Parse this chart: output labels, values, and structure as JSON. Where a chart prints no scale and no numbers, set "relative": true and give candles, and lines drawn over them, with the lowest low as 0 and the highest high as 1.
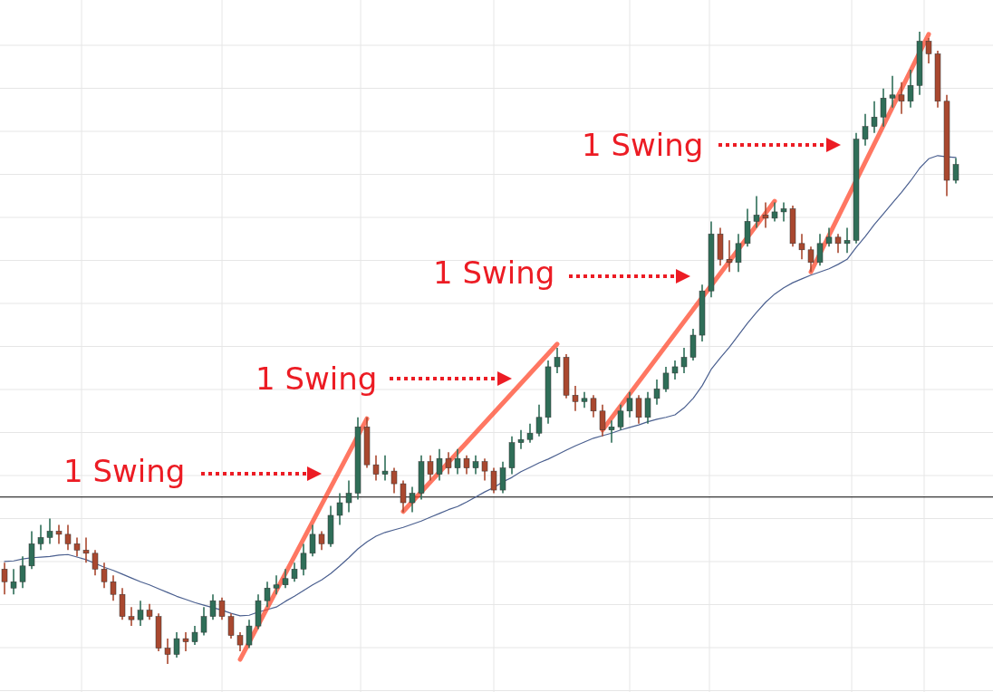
{
  "chart_data": {
    "type": "candlestick",
    "relative": true,
    "grid": true,
    "tick_labels": false,
    "categories": [
      null,
      null,
      null,
      null,
      null,
      null,
      null,
      null,
      null,
      null,
      null,
      null,
      null,
      null,
      null,
      null,
      null,
      null,
      null,
      null,
      null,
      null,
      null,
      null,
      null,
      null,
      null,
      null,
      null,
      null,
      null,
      null,
      null,
      null,
      null,
      null,
      null,
      null,
      null,
      null,
      null,
      null,
      null,
      null,
      null,
      null,
      null,
      null,
      null,
      null,
      null,
      null,
      null,
      null,
      null,
      null,
      null,
      null,
      null,
      null,
      null,
      null,
      null,
      null,
      null,
      null,
      null,
      null,
      null,
      null,
      null,
      null,
      null,
      null,
      null,
      null,
      null,
      null,
      null,
      null,
      null,
      null,
      null,
      null,
      null,
      null,
      null,
      null,
      null,
      null,
      null,
      null,
      null,
      null,
      null,
      null,
      null,
      null,
      null,
      null,
      null,
      null,
      null,
      null,
      null,
      null
    ],
    "ohlc": [
      [
        0.15,
        0.16,
        0.11,
        0.13
      ],
      [
        0.12,
        0.15,
        0.11,
        0.13
      ],
      [
        0.13,
        0.17,
        0.12,
        0.155
      ],
      [
        0.155,
        0.21,
        0.15,
        0.19
      ],
      [
        0.19,
        0.22,
        0.18,
        0.2
      ],
      [
        0.2,
        0.23,
        0.19,
        0.21
      ],
      [
        0.21,
        0.22,
        0.19,
        0.205
      ],
      [
        0.205,
        0.22,
        0.18,
        0.19
      ],
      [
        0.19,
        0.2,
        0.17,
        0.18
      ],
      [
        0.18,
        0.2,
        0.16,
        0.175
      ],
      [
        0.175,
        0.18,
        0.14,
        0.15
      ],
      [
        0.15,
        0.16,
        0.12,
        0.13
      ],
      [
        0.13,
        0.14,
        0.1,
        0.11
      ],
      [
        0.11,
        0.12,
        0.07,
        0.075
      ],
      [
        0.075,
        0.09,
        0.06,
        0.07
      ],
      [
        0.07,
        0.1,
        0.06,
        0.085
      ],
      [
        0.085,
        0.095,
        0.07,
        0.075
      ],
      [
        0.075,
        0.08,
        0.02,
        0.025
      ],
      [
        0.025,
        0.04,
        0,
        0.015
      ],
      [
        0.015,
        0.05,
        0.01,
        0.04
      ],
      [
        0.04,
        0.05,
        0.02,
        0.035
      ],
      [
        0.035,
        0.06,
        0.03,
        0.05
      ],
      [
        0.05,
        0.09,
        0.045,
        0.075
      ],
      [
        0.075,
        0.11,
        0.07,
        0.1
      ],
      [
        0.1,
        0.105,
        0.07,
        0.075
      ],
      [
        0.075,
        0.08,
        0.04,
        0.045
      ],
      [
        0.045,
        0.05,
        0.02,
        0.03
      ],
      [
        0.03,
        0.07,
        0.025,
        0.06
      ],
      [
        0.06,
        0.11,
        0.055,
        0.1
      ],
      [
        0.1,
        0.13,
        0.09,
        0.12
      ],
      [
        0.12,
        0.14,
        0.11,
        0.125
      ],
      [
        0.125,
        0.15,
        0.12,
        0.135
      ],
      [
        0.135,
        0.16,
        0.13,
        0.15
      ],
      [
        0.15,
        0.19,
        0.14,
        0.175
      ],
      [
        0.175,
        0.22,
        0.17,
        0.205
      ],
      [
        0.205,
        0.21,
        0.18,
        0.19
      ],
      [
        0.19,
        0.25,
        0.185,
        0.235
      ],
      [
        0.235,
        0.27,
        0.22,
        0.255
      ],
      [
        0.255,
        0.29,
        0.24,
        0.27
      ],
      [
        0.27,
        0.39,
        0.26,
        0.375
      ],
      [
        0.375,
        0.39,
        0.31,
        0.315
      ],
      [
        0.315,
        0.33,
        0.29,
        0.3
      ],
      [
        0.3,
        0.33,
        0.29,
        0.305
      ],
      [
        0.305,
        0.31,
        0.27,
        0.285
      ],
      [
        0.285,
        0.29,
        0.24,
        0.255
      ],
      [
        0.255,
        0.28,
        0.24,
        0.27
      ],
      [
        0.27,
        0.33,
        0.26,
        0.32
      ],
      [
        0.32,
        0.33,
        0.29,
        0.3
      ],
      [
        0.3,
        0.34,
        0.29,
        0.325
      ],
      [
        0.325,
        0.335,
        0.3,
        0.31
      ],
      [
        0.31,
        0.34,
        0.3,
        0.325
      ],
      [
        0.325,
        0.33,
        0.3,
        0.31
      ],
      [
        0.31,
        0.33,
        0.3,
        0.32
      ],
      [
        0.32,
        0.325,
        0.29,
        0.305
      ],
      [
        0.305,
        0.31,
        0.27,
        0.275
      ],
      [
        0.275,
        0.32,
        0.27,
        0.31
      ],
      [
        0.31,
        0.36,
        0.3,
        0.35
      ],
      [
        0.35,
        0.37,
        0.34,
        0.355
      ],
      [
        0.355,
        0.38,
        0.35,
        0.365
      ],
      [
        0.365,
        0.41,
        0.36,
        0.39
      ],
      [
        0.39,
        0.48,
        0.38,
        0.47
      ],
      [
        0.47,
        0.5,
        0.46,
        0.485
      ],
      [
        0.485,
        0.49,
        0.42,
        0.425
      ],
      [
        0.425,
        0.44,
        0.4,
        0.415
      ],
      [
        0.415,
        0.43,
        0.405,
        0.42
      ],
      [
        0.42,
        0.425,
        0.39,
        0.4
      ],
      [
        0.4,
        0.41,
        0.36,
        0.37
      ],
      [
        0.37,
        0.385,
        0.35,
        0.375
      ],
      [
        0.375,
        0.41,
        0.37,
        0.4
      ],
      [
        0.4,
        0.43,
        0.39,
        0.42
      ],
      [
        0.42,
        0.425,
        0.38,
        0.39
      ],
      [
        0.39,
        0.43,
        0.38,
        0.42
      ],
      [
        0.42,
        0.45,
        0.41,
        0.435
      ],
      [
        0.435,
        0.47,
        0.43,
        0.46
      ],
      [
        0.46,
        0.48,
        0.45,
        0.47
      ],
      [
        0.47,
        0.5,
        0.46,
        0.485
      ],
      [
        0.485,
        0.53,
        0.48,
        0.52
      ],
      [
        0.52,
        0.6,
        0.51,
        0.59
      ],
      [
        0.59,
        0.7,
        0.58,
        0.68
      ],
      [
        0.68,
        0.69,
        0.63,
        0.64
      ],
      [
        0.64,
        0.67,
        0.62,
        0.635
      ],
      [
        0.635,
        0.68,
        0.62,
        0.665
      ],
      [
        0.665,
        0.72,
        0.66,
        0.7
      ],
      [
        0.7,
        0.74,
        0.69,
        0.71
      ],
      [
        0.71,
        0.73,
        0.69,
        0.705
      ],
      [
        0.705,
        0.73,
        0.7,
        0.715
      ],
      [
        0.715,
        0.73,
        0.7,
        0.72
      ],
      [
        0.72,
        0.725,
        0.66,
        0.665
      ],
      [
        0.665,
        0.68,
        0.64,
        0.655
      ],
      [
        0.655,
        0.66,
        0.62,
        0.635
      ],
      [
        0.635,
        0.68,
        0.63,
        0.665
      ],
      [
        0.665,
        0.69,
        0.66,
        0.675
      ],
      [
        0.675,
        0.68,
        0.65,
        0.665
      ],
      [
        0.665,
        0.69,
        0.65,
        0.67
      ],
      [
        0.67,
        0.84,
        0.665,
        0.83
      ],
      [
        0.83,
        0.87,
        0.82,
        0.85
      ],
      [
        0.85,
        0.89,
        0.84,
        0.865
      ],
      [
        0.865,
        0.91,
        0.85,
        0.895
      ],
      [
        0.895,
        0.93,
        0.88,
        0.9
      ],
      [
        0.9,
        0.92,
        0.87,
        0.89
      ],
      [
        0.89,
        0.94,
        0.88,
        0.915
      ],
      [
        0.915,
        1,
        0.9,
        0.985
      ],
      [
        0.985,
        0.99,
        0.95,
        0.965
      ],
      [
        0.965,
        0.97,
        0.88,
        0.89
      ],
      [
        0.89,
        0.9,
        0.74,
        0.765
      ],
      [
        0.765,
        0.8,
        0.76,
        0.79
      ]
    ],
    "series": [
      {
        "type": "line",
        "color": "#4a5f8f",
        "values": [
          0.162,
          0.163,
          0.166,
          0.168,
          0.169,
          0.17,
          0.172,
          0.173,
          0.169,
          0.165,
          0.159,
          0.153,
          0.148,
          0.142,
          0.136,
          0.13,
          0.125,
          0.119,
          0.113,
          0.107,
          0.102,
          0.097,
          0.093,
          0.089,
          0.085,
          0.08,
          0.076,
          0.077,
          0.082,
          0.086,
          0.09,
          0.099,
          0.107,
          0.116,
          0.125,
          0.133,
          0.143,
          0.155,
          0.168,
          0.182,
          0.193,
          0.202,
          0.208,
          0.212,
          0.216,
          0.221,
          0.226,
          0.232,
          0.238,
          0.244,
          0.249,
          0.256,
          0.264,
          0.272,
          0.279,
          0.288,
          0.295,
          0.304,
          0.311,
          0.318,
          0.324,
          0.331,
          0.338,
          0.345,
          0.351,
          0.357,
          0.361,
          0.365,
          0.37,
          0.374,
          0.378,
          0.383,
          0.387,
          0.39,
          0.394,
          0.405,
          0.42,
          0.44,
          0.466,
          0.484,
          0.501,
          0.52,
          0.539,
          0.556,
          0.572,
          0.585,
          0.595,
          0.603,
          0.609,
          0.615,
          0.62,
          0.625,
          0.632,
          0.64,
          0.659,
          0.676,
          0.695,
          0.712,
          0.729,
          0.746,
          0.764,
          0.784,
          0.799,
          0.804,
          0.802,
          0.801
        ]
      },
      {
        "type": "line",
        "color": "#ff3d1f",
        "values": [
          null,
          null,
          null,
          null,
          null,
          null,
          null,
          null,
          null,
          null,
          null,
          null,
          null,
          null,
          null,
          null,
          null,
          null,
          null,
          null,
          null,
          null,
          null,
          null,
          null,
          null,
          0.007,
          null,
          null,
          null,
          null,
          null,
          null,
          null,
          null,
          null,
          null,
          null,
          null,
          null,
          0.388,
          null,
          null,
          null,
          null,
          null,
          null,
          null,
          null,
          null,
          null,
          null,
          null,
          null,
          null,
          null,
          null,
          null,
          null,
          null,
          null,
          null,
          null,
          null,
          null,
          null,
          null,
          null,
          null,
          null,
          null,
          null,
          null,
          null,
          null,
          null,
          null,
          null,
          null,
          null,
          null,
          null,
          null,
          null,
          null,
          null,
          null,
          null,
          null,
          null,
          null,
          null,
          null,
          null,
          null,
          null,
          null,
          null,
          null,
          null,
          null,
          null,
          null,
          null,
          null,
          null
        ]
      },
      {
        "type": "line",
        "color": "#ff3d1f",
        "values": [
          null,
          null,
          null,
          null,
          null,
          null,
          null,
          null,
          null,
          null,
          null,
          null,
          null,
          null,
          null,
          null,
          null,
          null,
          null,
          null,
          null,
          null,
          null,
          null,
          null,
          null,
          null,
          null,
          null,
          null,
          null,
          null,
          null,
          null,
          null,
          null,
          null,
          null,
          null,
          null,
          null,
          null,
          null,
          null,
          0.241,
          null,
          null,
          null,
          null,
          null,
          null,
          null,
          null,
          null,
          null,
          null,
          null,
          null,
          null,
          null,
          null,
          0.506,
          null,
          null,
          null,
          null,
          null,
          null,
          null,
          null,
          null,
          null,
          null,
          null,
          null,
          null,
          null,
          null,
          null,
          null,
          null,
          null,
          null,
          null,
          null,
          null,
          null,
          null,
          null,
          null,
          null,
          null,
          null,
          null,
          null,
          null,
          null,
          null,
          null,
          null,
          null,
          null,
          null,
          null,
          null,
          null
        ]
      },
      {
        "type": "line",
        "color": "#ff3d1f",
        "values": [
          null,
          null,
          null,
          null,
          null,
          null,
          null,
          null,
          null,
          null,
          null,
          null,
          null,
          null,
          null,
          null,
          null,
          null,
          null,
          null,
          null,
          null,
          null,
          null,
          null,
          null,
          null,
          null,
          null,
          null,
          null,
          null,
          null,
          null,
          null,
          null,
          null,
          null,
          null,
          null,
          null,
          null,
          null,
          null,
          null,
          null,
          null,
          null,
          null,
          null,
          null,
          null,
          null,
          null,
          null,
          null,
          null,
          null,
          null,
          null,
          null,
          null,
          null,
          null,
          null,
          null,
          0.37,
          null,
          null,
          null,
          null,
          null,
          null,
          null,
          null,
          null,
          null,
          null,
          null,
          null,
          null,
          null,
          null,
          null,
          null,
          0.732,
          null,
          null,
          null,
          null,
          null,
          null,
          null,
          null,
          null,
          null,
          null,
          null,
          null,
          null,
          null,
          null,
          null,
          null,
          null,
          null
        ]
      },
      {
        "type": "line",
        "color": "#ff3d1f",
        "values": [
          null,
          null,
          null,
          null,
          null,
          null,
          null,
          null,
          null,
          null,
          null,
          null,
          null,
          null,
          null,
          null,
          null,
          null,
          null,
          null,
          null,
          null,
          null,
          null,
          null,
          null,
          null,
          null,
          null,
          null,
          null,
          null,
          null,
          null,
          null,
          null,
          null,
          null,
          null,
          null,
          null,
          null,
          null,
          null,
          null,
          null,
          null,
          null,
          null,
          null,
          null,
          null,
          null,
          null,
          null,
          null,
          null,
          null,
          null,
          null,
          null,
          null,
          null,
          null,
          null,
          null,
          null,
          null,
          null,
          null,
          null,
          null,
          null,
          null,
          null,
          null,
          null,
          null,
          null,
          null,
          null,
          null,
          null,
          null,
          null,
          null,
          null,
          null,
          null,
          0.62,
          null,
          null,
          null,
          null,
          null,
          null,
          null,
          null,
          null,
          null,
          null,
          null,
          0.996,
          null,
          null,
          null
        ]
      }
    ],
    "ref_lines": [
      {
        "axis": "y",
        "value": 0.264,
        "color": "#000000"
      }
    ],
    "annotations": [
      "1 Swing",
      "1 Swing",
      "1 Swing",
      "1 Swing"
    ]
  }
}
